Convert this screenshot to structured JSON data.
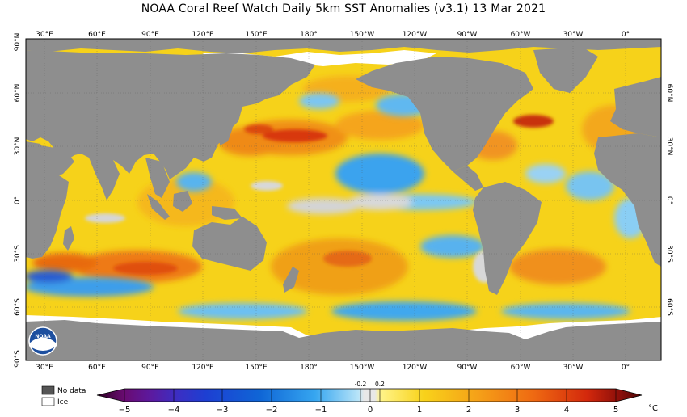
{
  "title": "NOAA Coral Reef Watch Daily 5km SST Anomalies  (v3.1)   13 Mar 2021",
  "lon_labels": [
    "30°E",
    "60°E",
    "90°E",
    "120°E",
    "150°E",
    "180°",
    "150°W",
    "120°W",
    "90°W",
    "60°W",
    "30°W",
    "0°"
  ],
  "lat_labels_left": [
    "90°N",
    "60°N",
    "30°N",
    "0°",
    "30°S",
    "60°S",
    "90°S"
  ],
  "lat_labels_right": [
    "60°N",
    "30°N",
    "0°",
    "30°S",
    "60°S"
  ],
  "colorbar": {
    "ticks": [
      "−5",
      "−4",
      "−3",
      "−2",
      "−1",
      "0",
      "1",
      "2",
      "3",
      "4",
      "5"
    ],
    "small_ticks": [
      "-0.2",
      "0.2"
    ],
    "unit": "°C"
  },
  "legend": {
    "no_data": "No data",
    "ice": "Ice"
  },
  "logo": {
    "text": "NOAA"
  },
  "colors": {
    "land": "#8e8e8e",
    "ocean_base": "#f6d21a",
    "ice": "#ffffff"
  }
}
